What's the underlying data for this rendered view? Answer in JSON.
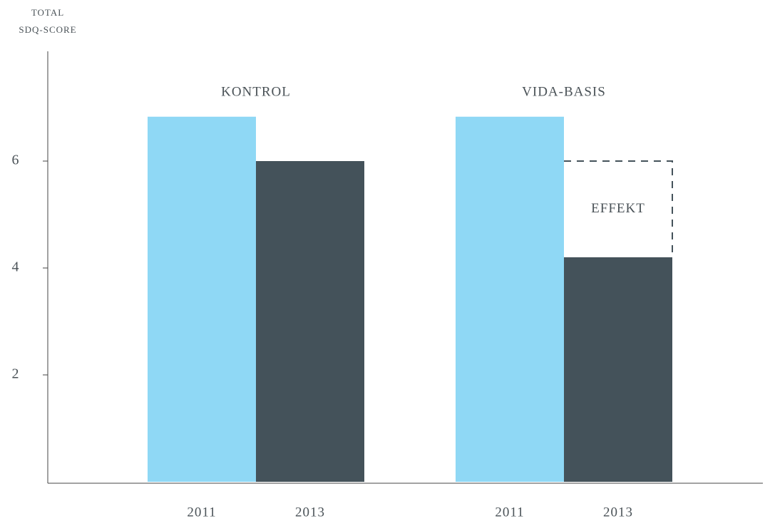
{
  "chart_data": {
    "type": "bar",
    "y_label": [
      "TOTAL",
      "SDQ-SCORE"
    ],
    "categories": [
      "KONTROL",
      "VIDA-BASIS"
    ],
    "series": [
      {
        "name": "2011",
        "color": "#8fd8f5",
        "values": [
          6.83,
          6.83
        ]
      },
      {
        "name": "2013",
        "color": "#44525a",
        "values": [
          6.0,
          4.2
        ]
      }
    ],
    "annotation": "EFFEKT",
    "ylim": [
      0,
      8
    ],
    "yticks": [
      2,
      4,
      6
    ]
  }
}
